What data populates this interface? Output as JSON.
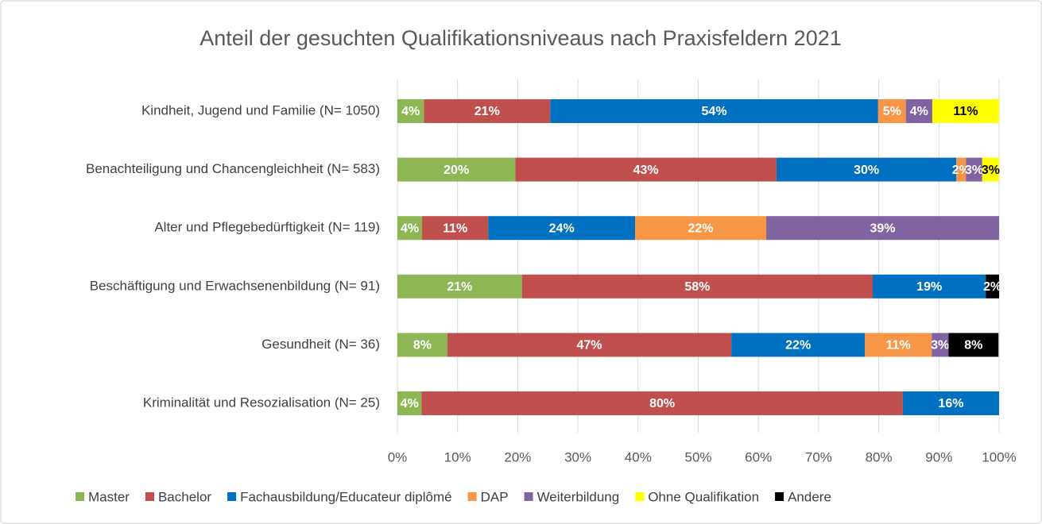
{
  "chart_data": {
    "type": "stacked_barh",
    "title": "Anteil der gesuchten Qualifikationsniveaus nach Praxisfeldern 2021",
    "categories": [
      "Kindheit, Jugend und Familie (N= 1050)",
      "Benachteiligung und Chancengleichheit (N= 583)",
      "Alter und Pflegebedürftigkeit (N= 119)",
      "Beschäftigung und Erwachsenenbildung (N= 91)",
      "Gesundheit (N= 36)",
      "Kriminalität und Resozialisation (N= 25)"
    ],
    "series": [
      {
        "name": "Master",
        "color": "#8DB654",
        "values": [
          4.4,
          19.6,
          4.1,
          20.7,
          8.3,
          4
        ],
        "value_labels": [
          "4%",
          "20%",
          "4%",
          "21%",
          "8%",
          "4%"
        ]
      },
      {
        "name": "Bachelor",
        "color": "#C0504D",
        "values": [
          21.0,
          43.4,
          11.0,
          58.3,
          47.2,
          80
        ],
        "value_labels": [
          "21%",
          "43%",
          "11%",
          "58%",
          "47%",
          "80%"
        ]
      },
      {
        "name": "Fachausbildung/Educateur diplômé",
        "color": "#0070C0",
        "values": [
          54.5,
          29.9,
          24.4,
          18.8,
          22.2,
          16
        ],
        "value_labels": [
          "54%",
          "30%",
          "24%",
          "19%",
          "22%",
          "16%"
        ]
      },
      {
        "name": "DAP",
        "color": "#F79646",
        "values": [
          4.6,
          1.6,
          21.8,
          null,
          11.1,
          null
        ],
        "value_labels": [
          "5%",
          "2%",
          "22%",
          null,
          "11%",
          null
        ]
      },
      {
        "name": "Weiterbildung",
        "color": "#8064A2",
        "values": [
          4.4,
          2.7,
          38.7,
          null,
          2.8,
          null
        ],
        "value_labels": [
          "4%",
          "3%",
          "39%",
          null,
          "3%",
          null
        ]
      },
      {
        "name": "Ohne Qualifikation",
        "color": "#FFFF00",
        "values": [
          11.1,
          2.8,
          null,
          null,
          null,
          null
        ],
        "value_labels": [
          "11%",
          "3%",
          null,
          null,
          null,
          null
        ]
      },
      {
        "name": "Andere",
        "color": "#000000",
        "values": [
          null,
          null,
          null,
          2.2,
          8.3,
          null
        ],
        "value_labels": [
          null,
          null,
          null,
          "2%",
          "8%",
          null
        ]
      }
    ],
    "xlim": [
      0,
      100
    ],
    "xticks": [
      {
        "value": 0,
        "label": "0%"
      },
      {
        "value": 10,
        "label": "10%"
      },
      {
        "value": 20,
        "label": "20%"
      },
      {
        "value": 30,
        "label": "30%"
      },
      {
        "value": 40,
        "label": "40%"
      },
      {
        "value": 50,
        "label": "50%"
      },
      {
        "value": 60,
        "label": "60%"
      },
      {
        "value": 70,
        "label": "70%"
      },
      {
        "value": 80,
        "label": "80%"
      },
      {
        "value": 90,
        "label": "90%"
      },
      {
        "value": 100,
        "label": "100%"
      }
    ],
    "grid": true,
    "legend": "bottom"
  }
}
